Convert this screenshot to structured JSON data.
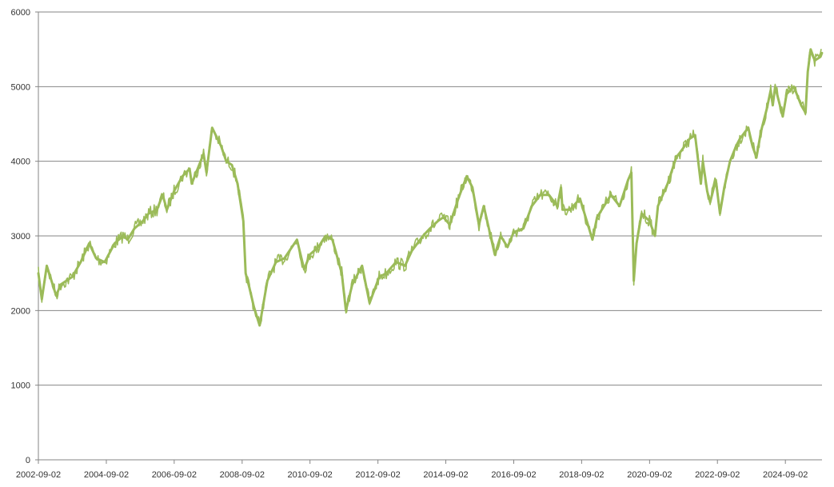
{
  "chart_data": {
    "type": "line",
    "title": "",
    "xlabel": "",
    "ylabel": "",
    "x_ticks": [
      "2002-09-02",
      "2004-09-02",
      "2006-09-02",
      "2008-09-02",
      "2010-09-02",
      "2012-09-02",
      "2014-09-02",
      "2016-09-02",
      "2018-09-02",
      "2020-09-02",
      "2022-09-02",
      "2024-09-02"
    ],
    "y_ticks": [
      "0",
      "1000",
      "2000",
      "3000",
      "4000",
      "5000",
      "6000"
    ],
    "ylim": [
      0,
      6000
    ],
    "xlim": [
      "2002-09-02",
      "2025-10-01"
    ],
    "grid": "horizontal",
    "line_color": "#9bbb59",
    "series": [
      {
        "x": [
          "2002-09-02",
          "2002-10-09",
          "2002-12-01",
          "2003-03-12",
          "2003-05-01",
          "2003-09-01",
          "2003-12-01",
          "2004-03-01",
          "2004-05-15",
          "2004-08-15",
          "2004-12-01",
          "2005-03-01",
          "2005-04-20",
          "2005-07-01",
          "2005-10-01",
          "2005-12-01",
          "2006-03-01",
          "2006-05-01",
          "2006-06-15",
          "2006-09-01",
          "2006-12-01",
          "2007-02-15",
          "2007-03-10",
          "2007-07-15",
          "2007-08-15",
          "2007-10-15",
          "2008-01-20",
          "2008-03-15",
          "2008-05-15",
          "2008-07-15",
          "2008-09-15",
          "2008-10-10",
          "2008-11-20",
          "2009-01-06",
          "2009-03-09",
          "2009-06-01",
          "2009-09-01",
          "2009-12-01",
          "2010-04-15",
          "2010-07-01",
          "2010-09-01",
          "2010-12-01",
          "2011-02-15",
          "2011-05-01",
          "2011-08-10",
          "2011-09-23",
          "2011-12-01",
          "2012-03-15",
          "2012-06-04",
          "2012-09-15",
          "2012-12-01",
          "2013-03-15",
          "2013-06-20",
          "2013-09-01",
          "2013-12-31",
          "2014-03-15",
          "2014-06-10",
          "2014-08-07",
          "2014-10-15",
          "2015-01-15",
          "2015-04-15",
          "2015-06-15",
          "2015-08-25",
          "2015-10-15",
          "2016-02-11",
          "2016-04-15",
          "2016-06-27",
          "2016-09-01",
          "2016-12-15",
          "2017-03-15",
          "2017-06-15",
          "2017-09-15",
          "2017-12-15",
          "2018-01-23",
          "2018-02-09",
          "2018-05-01",
          "2018-08-15",
          "2018-10-15",
          "2018-12-27",
          "2019-02-15",
          "2019-05-01",
          "2019-07-15",
          "2019-10-15",
          "2020-01-15",
          "2020-02-19",
          "2020-03-16",
          "2020-04-15",
          "2020-06-08",
          "2020-09-01",
          "2020-10-30",
          "2020-12-01",
          "2021-03-15",
          "2021-06-15",
          "2021-08-15",
          "2021-11-05",
          "2022-01-05",
          "2022-03-08",
          "2022-03-29",
          "2022-05-15",
          "2022-06-16",
          "2022-08-16",
          "2022-09-29",
          "2022-11-15",
          "2023-01-15",
          "2023-03-20",
          "2023-05-01",
          "2023-07-31",
          "2023-09-15",
          "2023-10-27",
          "2023-12-15",
          "2024-02-15",
          "2024-03-28",
          "2024-04-19",
          "2024-05-15",
          "2024-08-05",
          "2024-09-15",
          "2024-12-01",
          "2025-02-19",
          "2025-04-07",
          "2025-05-01",
          "2025-06-01",
          "2025-07-15",
          "2025-09-15",
          "2025-09-30"
        ],
        "values": [
          2500,
          2150,
          2600,
          2200,
          2350,
          2450,
          2650,
          2900,
          2700,
          2650,
          2900,
          3000,
          2950,
          3100,
          3200,
          3300,
          3350,
          3550,
          3350,
          3600,
          3800,
          3900,
          3700,
          4100,
          3850,
          4450,
          4200,
          4000,
          3950,
          3700,
          3200,
          2500,
          2300,
          2050,
          1800,
          2400,
          2650,
          2700,
          2950,
          2550,
          2750,
          2850,
          3000,
          2950,
          2500,
          2000,
          2350,
          2600,
          2100,
          2450,
          2500,
          2650,
          2600,
          2800,
          3000,
          3100,
          3200,
          3250,
          3150,
          3500,
          3800,
          3650,
          3150,
          3400,
          2750,
          3000,
          2850,
          3050,
          3100,
          3400,
          3550,
          3550,
          3400,
          3650,
          3350,
          3350,
          3500,
          3250,
          2950,
          3250,
          3400,
          3550,
          3400,
          3750,
          3850,
          2400,
          2900,
          3300,
          3200,
          3000,
          3400,
          3700,
          4050,
          4150,
          4300,
          4350,
          3700,
          4000,
          3600,
          3450,
          3750,
          3300,
          3650,
          4000,
          4200,
          4300,
          4450,
          4200,
          4050,
          4400,
          4700,
          4950,
          4750,
          5000,
          4600,
          4900,
          5000,
          4750,
          4650,
          5200,
          5500,
          5350,
          5400,
          5450
        ]
      }
    ]
  }
}
